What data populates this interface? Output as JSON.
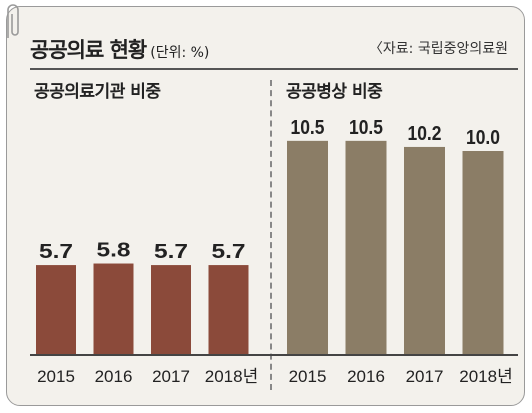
{
  "header": {
    "title": "공공의료 현황",
    "unit": "(단위: %)",
    "source": "〈자료: 국립중앙의료원"
  },
  "chart_data": [
    {
      "type": "bar",
      "title": "공공의료기관 비중",
      "categories": [
        "2015",
        "2016",
        "2017",
        "2018년"
      ],
      "values": [
        5.7,
        5.8,
        5.7,
        5.7
      ],
      "value_labels": [
        "5.7",
        "5.8",
        "5.7",
        "5.7"
      ],
      "color": "#8b4a3a"
    },
    {
      "type": "bar",
      "title": "공공병상 비중",
      "categories": [
        "2015",
        "2016",
        "2017",
        "2018년"
      ],
      "values": [
        10.5,
        10.5,
        10.2,
        10.0
      ],
      "value_labels": [
        "10.5",
        "10.5",
        "10.2",
        "10.0"
      ],
      "color": "#8b7d66"
    }
  ]
}
